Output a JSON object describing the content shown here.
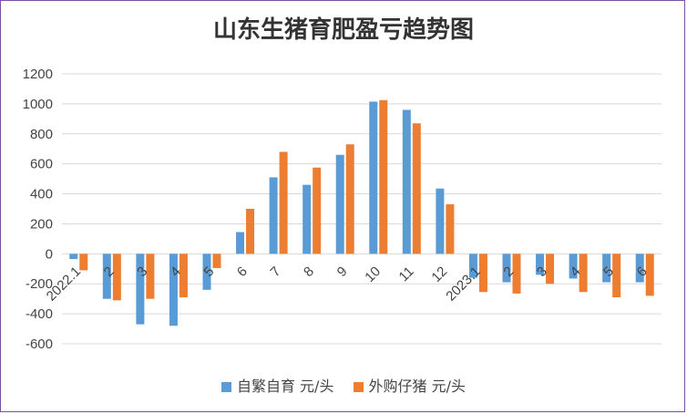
{
  "chart_data": {
    "type": "bar",
    "title": "山东生猪育肥盈亏趋势图",
    "categories": [
      "2022.1",
      "2",
      "3",
      "4",
      "5",
      "6",
      "7",
      "8",
      "9",
      "10",
      "11",
      "12",
      "2023.1",
      "2",
      "3",
      "4",
      "5",
      "6"
    ],
    "series": [
      {
        "name": "自繁自育 元/头",
        "color": "#5b9bd5",
        "values": [
          -35,
          -300,
          -470,
          -480,
          -240,
          145,
          510,
          460,
          660,
          1015,
          960,
          435,
          -160,
          -190,
          -140,
          -165,
          -190,
          -190
        ]
      },
      {
        "name": "外购仔猪 元/头",
        "color": "#ed7d31",
        "values": [
          -110,
          -310,
          -300,
          -290,
          -95,
          300,
          680,
          575,
          730,
          1025,
          870,
          330,
          -255,
          -265,
          -200,
          -255,
          -290,
          -280
        ]
      }
    ],
    "ylim": [
      -600,
      1200
    ],
    "yticks": [
      -600,
      -400,
      -200,
      0,
      200,
      400,
      600,
      800,
      1000,
      1200
    ],
    "grid": true,
    "legend_position": "bottom"
  }
}
